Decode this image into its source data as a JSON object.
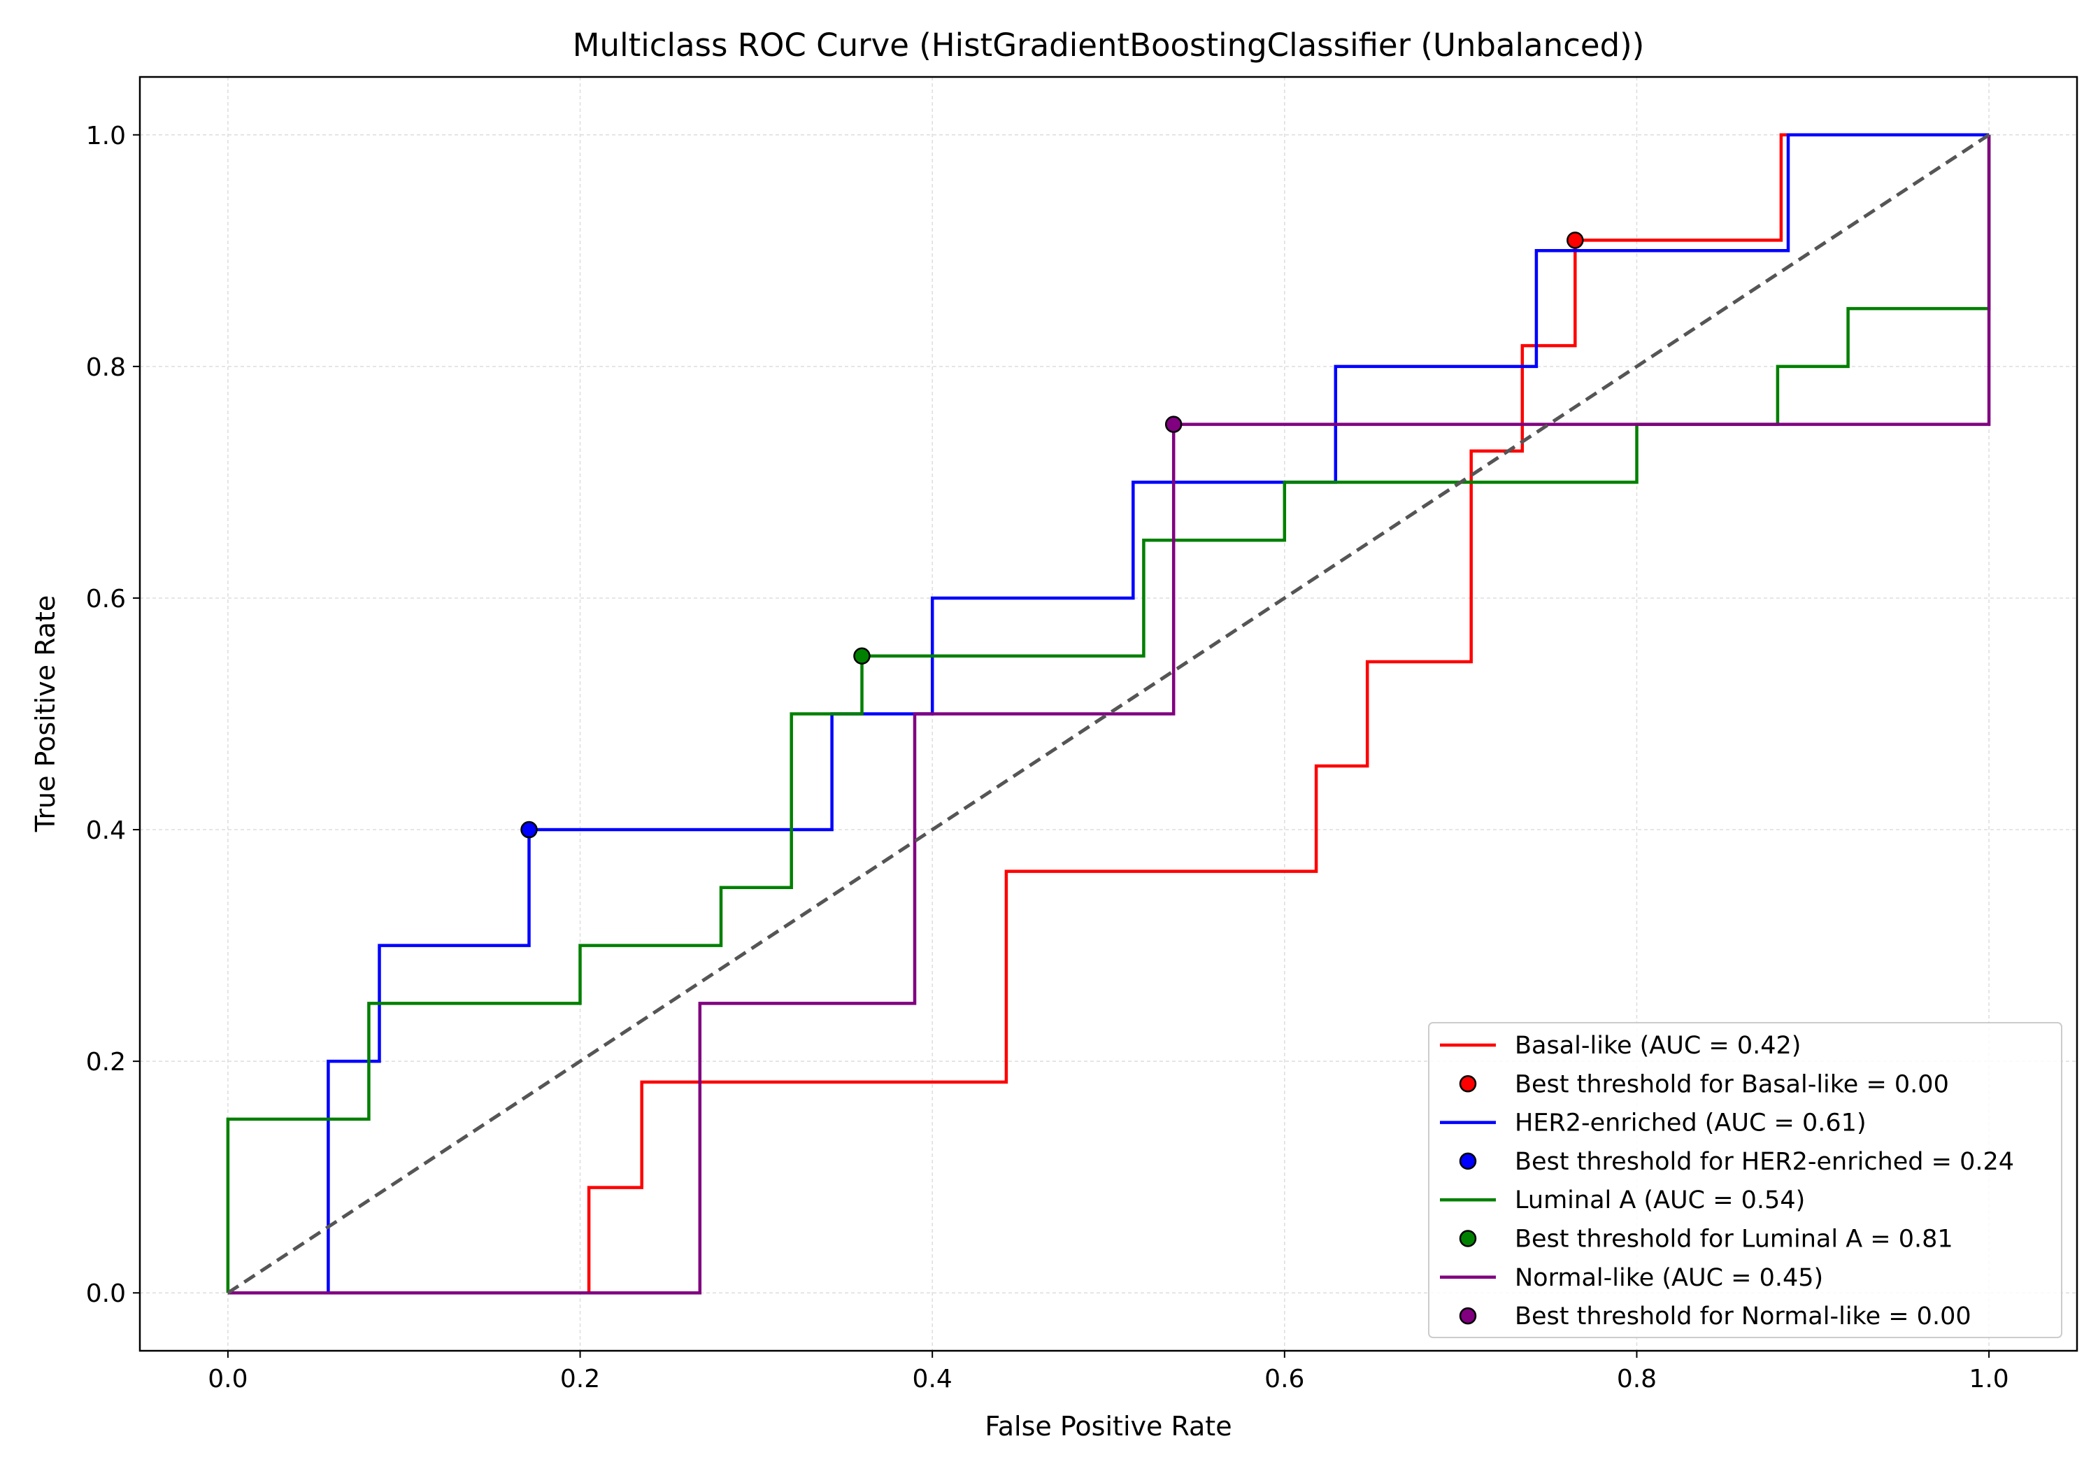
{
  "chart_data": {
    "type": "line",
    "title": "Multiclass ROC Curve (HistGradientBoostingClassifier (Unbalanced))",
    "xlabel": "False Positive Rate",
    "ylabel": "True Positive Rate",
    "xlim": [
      -0.05,
      1.05
    ],
    "ylim": [
      -0.05,
      1.05
    ],
    "xticks": [
      "0.0",
      "0.2",
      "0.4",
      "0.6",
      "0.8",
      "1.0"
    ],
    "yticks": [
      "0.0",
      "0.2",
      "0.4",
      "0.6",
      "0.8",
      "1.0"
    ],
    "xtick_values": [
      0,
      0.2,
      0.4,
      0.6,
      0.8,
      1.0
    ],
    "ytick_values": [
      0,
      0.2,
      0.4,
      0.6,
      0.8,
      1.0
    ],
    "grid": true,
    "legend_position": "lower-right",
    "reference_line": {
      "x": [
        0,
        1
      ],
      "y": [
        0,
        1
      ],
      "color": "#555555",
      "style": "dashed"
    },
    "series": [
      {
        "name": "Basal-like (AUC = 0.42)",
        "color": "#ff0000",
        "x": [
          0,
          0.205,
          0.205,
          0.235,
          0.235,
          0.442,
          0.442,
          0.618,
          0.618,
          0.647,
          0.647,
          0.706,
          0.706,
          0.735,
          0.735,
          0.765,
          0.765,
          0.882,
          0.882,
          1.0
        ],
        "y": [
          0,
          0,
          0.091,
          0.091,
          0.182,
          0.182,
          0.364,
          0.364,
          0.455,
          0.455,
          0.545,
          0.545,
          0.727,
          0.727,
          0.818,
          0.818,
          0.909,
          0.909,
          1.0,
          1.0
        ],
        "best_point": {
          "label": "Best threshold for Basal-like = 0.00",
          "x": 0.765,
          "y": 0.909
        }
      },
      {
        "name": "HER2-enriched (AUC = 0.61)",
        "color": "#0000ff",
        "x": [
          0,
          0.057,
          0.057,
          0.086,
          0.086,
          0.171,
          0.171,
          0.343,
          0.343,
          0.4,
          0.4,
          0.514,
          0.514,
          0.629,
          0.629,
          0.743,
          0.743,
          0.886,
          0.886,
          1.0
        ],
        "y": [
          0,
          0,
          0.2,
          0.2,
          0.3,
          0.3,
          0.4,
          0.4,
          0.5,
          0.5,
          0.6,
          0.6,
          0.7,
          0.7,
          0.8,
          0.8,
          0.9,
          0.9,
          1.0,
          1.0
        ],
        "best_point": {
          "label": "Best threshold for HER2-enriched = 0.24",
          "x": 0.171,
          "y": 0.4
        }
      },
      {
        "name": "Luminal A (AUC = 0.54)",
        "color": "#008000",
        "x": [
          0,
          0,
          0.08,
          0.08,
          0.2,
          0.2,
          0.28,
          0.28,
          0.32,
          0.32,
          0.36,
          0.36,
          0.52,
          0.52,
          0.6,
          0.6,
          0.8,
          0.8,
          0.88,
          0.88,
          0.92,
          0.92,
          1.0,
          1.0
        ],
        "y": [
          0,
          0.15,
          0.15,
          0.25,
          0.25,
          0.3,
          0.3,
          0.35,
          0.35,
          0.5,
          0.5,
          0.55,
          0.55,
          0.65,
          0.65,
          0.7,
          0.7,
          0.75,
          0.75,
          0.8,
          0.8,
          0.85,
          0.85,
          1.0
        ],
        "best_point": {
          "label": "Best threshold for Luminal A = 0.81",
          "x": 0.36,
          "y": 0.55
        }
      },
      {
        "name": "Normal-like (AUC = 0.45)",
        "color": "#800080",
        "x": [
          0,
          0.268,
          0.268,
          0.39,
          0.39,
          0.537,
          0.537,
          1.0,
          1.0
        ],
        "y": [
          0,
          0,
          0.25,
          0.25,
          0.5,
          0.5,
          0.75,
          0.75,
          1.0
        ],
        "best_point": {
          "label": "Best threshold for Normal-like = 0.00",
          "x": 0.537,
          "y": 0.75
        }
      }
    ]
  }
}
